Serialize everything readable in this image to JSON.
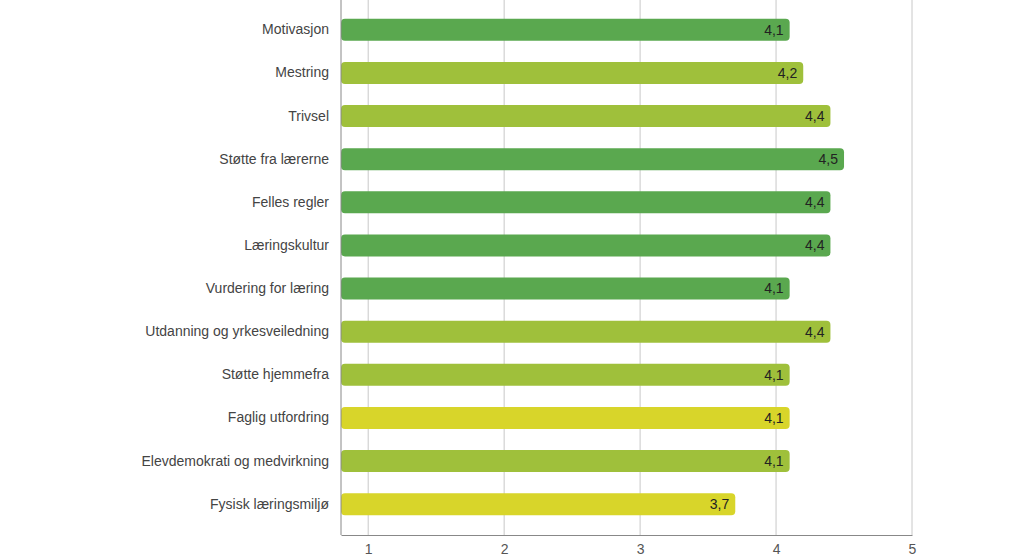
{
  "chart_data": {
    "type": "bar",
    "orientation": "horizontal",
    "categories": [
      "Motivasjon",
      "Mestring",
      "Trivsel",
      "Støtte fra lærerne",
      "Felles regler",
      "Læringskultur",
      "Vurdering for læring",
      "Utdanning og yrkesveiledning",
      "Støtte hjemmefra",
      "Faglig utfordring",
      "Elevdemokrati og medvirkning",
      "Fysisk læringsmiljø"
    ],
    "values": [
      4.1,
      4.2,
      4.4,
      4.5,
      4.4,
      4.4,
      4.1,
      4.4,
      4.1,
      4.1,
      4.1,
      3.7
    ],
    "value_labels": [
      "4,1",
      "4,2",
      "4,4",
      "4,5",
      "4,4",
      "4,4",
      "4,1",
      "4,4",
      "4,1",
      "4,1",
      "4,1",
      "3,7"
    ],
    "colors": [
      "#5aa84f",
      "#9fc03b",
      "#9fc03b",
      "#5aa84f",
      "#5aa84f",
      "#5aa84f",
      "#5aa84f",
      "#9fc03b",
      "#9fc03b",
      "#d8d52a",
      "#9fc03b",
      "#d8d52a"
    ],
    "xlim": [
      0.8,
      5
    ],
    "xticks": [
      1,
      2,
      3,
      4,
      5
    ],
    "grid": true,
    "data_labels": true
  }
}
